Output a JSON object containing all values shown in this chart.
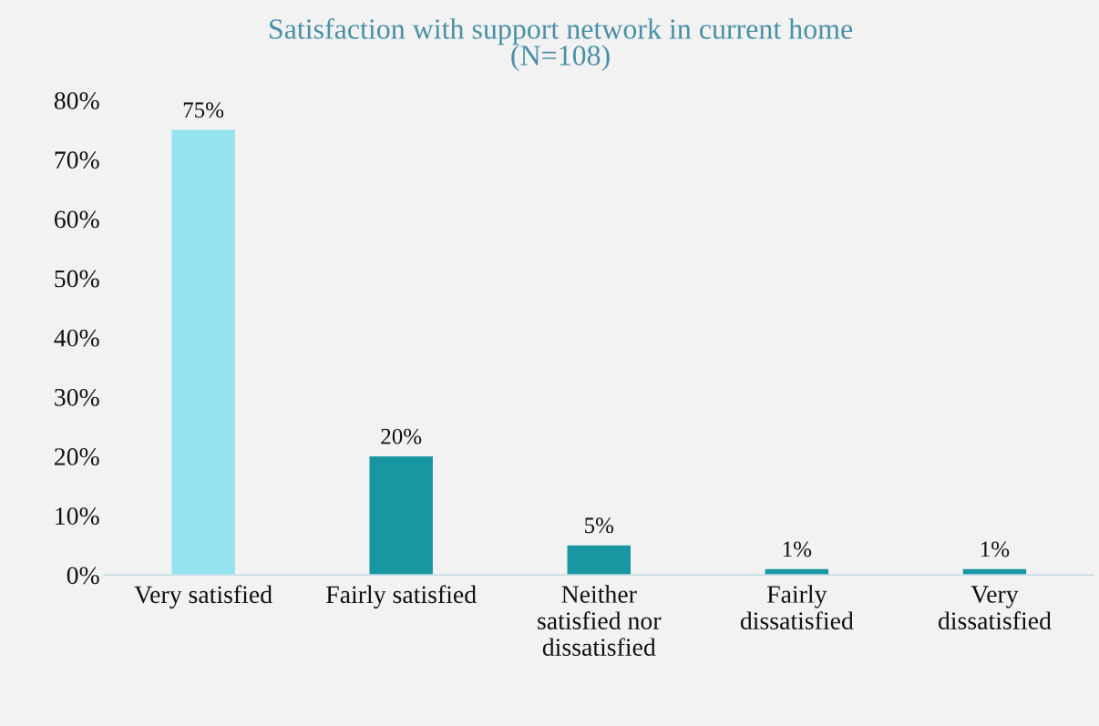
{
  "chart_data": {
    "type": "bar",
    "title": "Satisfaction with support network in current home\n(N=108)",
    "categories": [
      "Very satisfied",
      "Fairly satisfied",
      "Neither\nsatisfied nor\ndissatisfied",
      "Fairly\ndissatisfied",
      "Very\ndissatisfied"
    ],
    "values": [
      75,
      20,
      5,
      1,
      1
    ],
    "colors": [
      "#96e3f0",
      "#1897a3",
      "#1897a3",
      "#1897a3",
      "#1897a3"
    ],
    "value_labels": [
      "75%",
      "20%",
      "5%",
      "1%",
      "1%"
    ],
    "ylim": [
      0,
      80
    ],
    "yticks": [
      {
        "value": 0,
        "label": "0%"
      },
      {
        "value": 10,
        "label": "10%"
      },
      {
        "value": 20,
        "label": "20%"
      },
      {
        "value": 30,
        "label": "30%"
      },
      {
        "value": 40,
        "label": "40%"
      },
      {
        "value": 50,
        "label": "50%"
      },
      {
        "value": 60,
        "label": "60%"
      },
      {
        "value": 70,
        "label": "70%"
      },
      {
        "value": 80,
        "label": "80%"
      }
    ],
    "grid": false
  }
}
